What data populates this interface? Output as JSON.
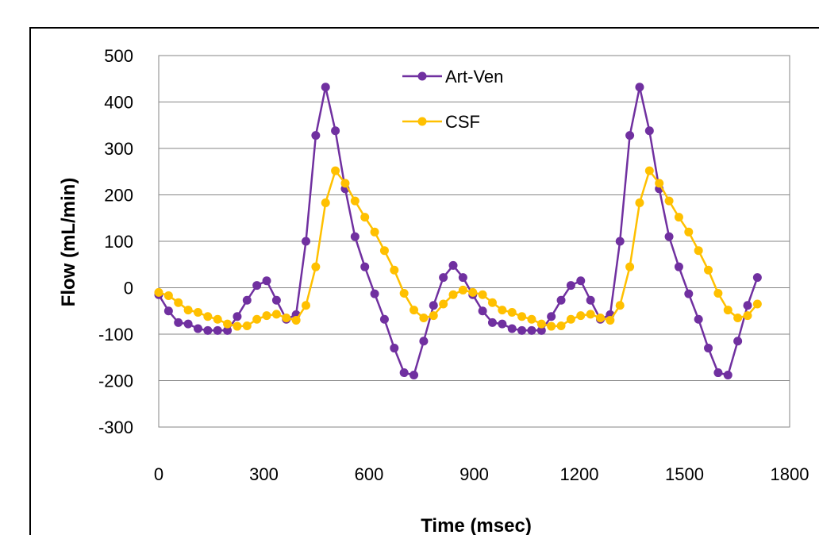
{
  "chart_data": {
    "type": "line",
    "title": "",
    "xlabel": "Time (msec)",
    "ylabel": "Flow (mL/min)",
    "xlim": [
      0,
      1800
    ],
    "ylim": [
      -300,
      500
    ],
    "x_ticks": [
      0,
      300,
      600,
      900,
      1200,
      1500,
      1800
    ],
    "y_ticks": [
      500,
      400,
      300,
      200,
      100,
      0,
      -100,
      -200,
      -300
    ],
    "grid": "horizontal",
    "legend_position": "top-center",
    "x": [
      0,
      28,
      56,
      84,
      112,
      140,
      168,
      196,
      224,
      252,
      280,
      308,
      336,
      364,
      392,
      420,
      448,
      476,
      504,
      532,
      560,
      588,
      616,
      644,
      672,
      700,
      728,
      756,
      784,
      812,
      840,
      868,
      896,
      924,
      952,
      980,
      1008,
      1036,
      1064,
      1092,
      1120,
      1148,
      1176,
      1204,
      1232,
      1260,
      1288,
      1316,
      1344,
      1372,
      1400,
      1428,
      1456,
      1484,
      1512,
      1540,
      1568,
      1596,
      1624,
      1652,
      1680,
      1708
    ],
    "series": [
      {
        "name": "Art-Ven",
        "color": "#7030a0",
        "values": [
          -15,
          -50,
          -75,
          -78,
          -88,
          -92,
          -92,
          -92,
          -62,
          -27,
          5,
          15,
          -27,
          -68,
          -58,
          100,
          328,
          432,
          338,
          213,
          110,
          45,
          -13,
          -68,
          -130,
          -183,
          -188,
          -115,
          -38,
          22,
          48,
          22,
          -15,
          -50,
          -75,
          -78,
          -88,
          -92,
          -92,
          -92,
          -62,
          -27,
          5,
          15,
          -27,
          -68,
          -58,
          100,
          328,
          432,
          338,
          213,
          110,
          45,
          -13,
          -68,
          -130,
          -183,
          -188,
          -115,
          -38,
          22
        ]
      },
      {
        "name": "CSF",
        "color": "#ffc000",
        "values": [
          -10,
          -17,
          -32,
          -48,
          -53,
          -62,
          -68,
          -78,
          -83,
          -82,
          -68,
          -60,
          -57,
          -65,
          -70,
          -38,
          45,
          183,
          252,
          225,
          187,
          152,
          120,
          80,
          38,
          -12,
          -48,
          -65,
          -60,
          -35,
          -15,
          -5,
          -10,
          -15,
          -32,
          -48,
          -53,
          -62,
          -68,
          -78,
          -83,
          -82,
          -68,
          -60,
          -57,
          -65,
          -70,
          -38,
          45,
          183,
          252,
          225,
          187,
          152,
          120,
          80,
          38,
          -12,
          -48,
          -65,
          -60,
          -35
        ]
      }
    ]
  }
}
